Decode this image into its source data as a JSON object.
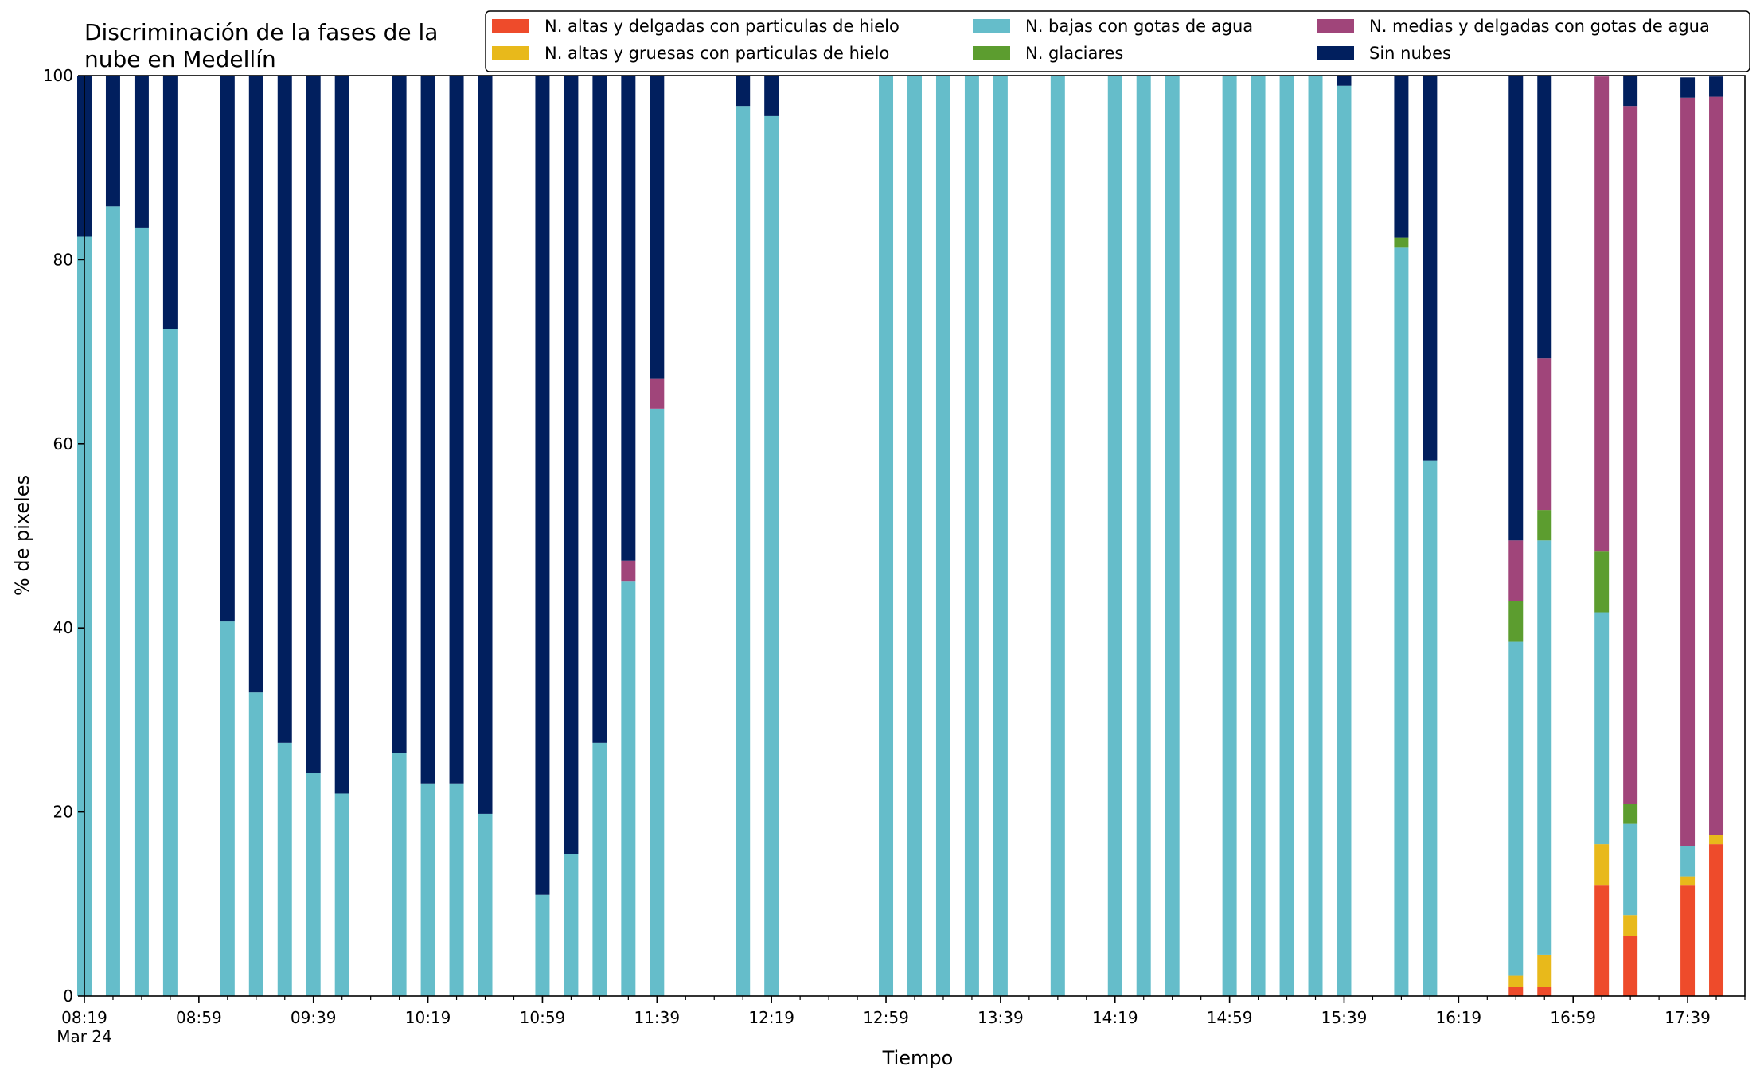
{
  "chart_data": {
    "type": "bar",
    "stacked": true,
    "title": [
      "Discriminación de la fases de la",
      "nube en Medellín"
    ],
    "xlabel": "Tiempo",
    "ylabel": "% de pixeles",
    "ylim": [
      0,
      100
    ],
    "yticks": [
      0,
      20,
      40,
      60,
      80,
      100
    ],
    "xtick_labels": [
      "08:19",
      "08:59",
      "09:39",
      "10:19",
      "10:59",
      "11:39",
      "12:19",
      "12:59",
      "13:39",
      "14:19",
      "14:59",
      "15:39",
      "16:19",
      "16:59",
      "17:39"
    ],
    "xtick_sublabel": "Mar 24",
    "x_start": "08:19",
    "x_end": "17:59",
    "x_step_minutes": 10,
    "legend_position": "top-right",
    "grid": false,
    "x": [
      "08:19",
      "08:29",
      "08:39",
      "08:49",
      "08:59",
      "09:09",
      "09:19",
      "09:29",
      "09:39",
      "09:49",
      "09:59",
      "10:09",
      "10:19",
      "10:29",
      "10:39",
      "10:49",
      "10:59",
      "11:09",
      "11:19",
      "11:29",
      "11:39",
      "11:49",
      "11:59",
      "12:09",
      "12:19",
      "12:29",
      "12:39",
      "12:49",
      "12:59",
      "13:09",
      "13:19",
      "13:29",
      "13:39",
      "13:49",
      "13:59",
      "14:09",
      "14:19",
      "14:29",
      "14:39",
      "14:49",
      "14:59",
      "15:09",
      "15:19",
      "15:29",
      "15:39",
      "15:49",
      "15:59",
      "16:09",
      "16:19",
      "16:29",
      "16:39",
      "16:49",
      "16:59",
      "17:09",
      "17:19",
      "17:29",
      "17:39",
      "17:49"
    ],
    "series": [
      {
        "name": "N. altas y delgadas con particulas de hielo",
        "color": "#ee4b2b",
        "values": [
          0,
          0,
          0,
          0,
          0,
          0,
          0,
          0,
          0,
          0,
          0,
          0,
          0,
          0,
          0,
          0,
          0,
          0,
          0,
          0,
          0,
          0,
          0,
          0,
          0,
          0,
          0,
          0,
          0,
          0,
          0,
          0,
          0,
          0,
          0,
          0,
          0,
          0,
          0,
          0,
          0,
          0,
          0,
          0,
          0,
          0,
          0,
          0,
          0,
          0,
          1,
          1,
          0,
          12,
          6.5,
          0,
          12,
          16.5
        ]
      },
      {
        "name": "N. altas y gruesas con particulas de hielo",
        "color": "#e8b91b",
        "values": [
          0,
          0,
          0,
          0,
          0,
          0,
          0,
          0,
          0,
          0,
          0,
          0,
          0,
          0,
          0,
          0,
          0,
          0,
          0,
          0,
          0,
          0,
          0,
          0,
          0,
          0,
          0,
          0,
          0,
          0,
          0,
          0,
          0,
          0,
          0,
          0,
          0,
          0,
          0,
          0,
          0,
          0,
          0,
          0,
          0,
          0,
          0,
          0,
          0,
          0,
          1.2,
          3.5,
          0,
          4.5,
          2.3,
          0,
          1,
          1
        ]
      },
      {
        "name": "N. bajas con gotas de agua",
        "color": "#65bdca",
        "values": [
          82.5,
          85.8,
          83.5,
          72.5,
          0,
          40.7,
          33,
          27.5,
          24.2,
          22,
          0,
          26.4,
          23.1,
          23.1,
          19.8,
          0,
          11,
          15.4,
          27.5,
          45.1,
          63.8,
          0,
          0,
          96.7,
          95.6,
          0,
          0,
          0,
          100,
          100,
          100,
          100,
          100,
          0,
          100,
          0,
          100,
          100,
          100,
          0,
          100,
          100,
          100,
          100,
          98.9,
          0,
          81.3,
          58.2,
          0,
          0,
          36.3,
          45,
          0,
          25.2,
          9.9,
          0,
          3.3,
          0
        ]
      },
      {
        "name": "N. glaciares",
        "color": "#5c9d2f",
        "values": [
          0,
          0,
          0,
          0,
          0,
          0,
          0,
          0,
          0,
          0,
          0,
          0,
          0,
          0,
          0,
          0,
          0,
          0,
          0,
          0,
          0,
          0,
          0,
          0,
          0,
          0,
          0,
          0,
          0,
          0,
          0,
          0,
          0,
          0,
          0,
          0,
          0,
          0,
          0,
          0,
          0,
          0,
          0,
          0,
          0,
          0,
          1.1,
          0,
          0,
          0,
          4.4,
          3.3,
          0,
          6.6,
          2.2,
          0,
          0,
          0
        ]
      },
      {
        "name": "N. medias y delgadas con gotas de agua",
        "color": "#a0457a",
        "values": [
          0,
          0,
          0,
          0,
          0,
          0,
          0,
          0,
          0,
          0,
          0,
          0,
          0,
          0,
          0,
          0,
          0,
          0,
          0,
          2.2,
          3.3,
          0,
          0,
          0,
          0,
          0,
          0,
          0,
          0,
          0,
          0,
          0,
          0,
          0,
          0,
          0,
          0,
          0,
          0,
          0,
          0,
          0,
          0,
          0,
          0,
          0,
          0,
          0,
          0,
          0,
          6.6,
          16.5,
          0,
          51.6,
          75.8,
          0,
          81.3,
          80.2
        ]
      },
      {
        "name": "Sin nubes",
        "color": "#011f5e",
        "values": [
          17.5,
          14.2,
          16.5,
          27.5,
          0,
          59.3,
          67,
          72.5,
          75.8,
          78,
          0,
          73.6,
          76.9,
          76.9,
          80.2,
          0,
          89,
          84.6,
          72.5,
          52.7,
          32.9,
          0,
          0,
          3.3,
          4.4,
          0,
          0,
          0,
          0,
          0,
          0,
          0,
          0,
          0,
          0,
          0,
          0,
          0,
          0,
          0,
          0,
          0,
          0,
          0,
          1.1,
          0,
          17.6,
          41.8,
          0,
          0,
          50.5,
          30.7,
          0,
          0,
          3.3,
          0,
          2.2,
          2.2
        ]
      }
    ]
  }
}
